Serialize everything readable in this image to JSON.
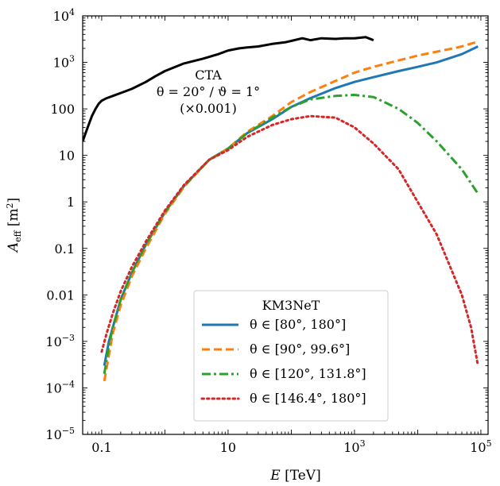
{
  "chart_data": {
    "type": "line",
    "xlabel": "E [TeV]",
    "ylabel": "A_eff [m²]",
    "xscale": "log",
    "yscale": "log",
    "xlim": [
      0.05,
      130000
    ],
    "ylim": [
      1e-05,
      10000
    ],
    "x_ticks": [
      {
        "value": 0.1,
        "base": "0.1",
        "sup": ""
      },
      {
        "value": 10,
        "base": "10",
        "sup": ""
      },
      {
        "value": 1000,
        "base": "10",
        "sup": "3"
      },
      {
        "value": 100000,
        "base": "10",
        "sup": "5"
      }
    ],
    "y_ticks": [
      {
        "value": 10000,
        "base": "10",
        "sup": "4"
      },
      {
        "value": 1000,
        "base": "10",
        "sup": "3"
      },
      {
        "value": 100,
        "base": "100",
        "sup": ""
      },
      {
        "value": 10,
        "base": "10",
        "sup": ""
      },
      {
        "value": 1,
        "base": "1",
        "sup": ""
      },
      {
        "value": 0.1,
        "base": "0.1",
        "sup": ""
      },
      {
        "value": 0.01,
        "base": "0.01",
        "sup": ""
      },
      {
        "value": 0.001,
        "base": "10",
        "sup": "−3"
      },
      {
        "value": 0.0001,
        "base": "10",
        "sup": "−4"
      },
      {
        "value": 1e-05,
        "base": "10",
        "sup": "−5"
      }
    ],
    "annotation": {
      "line1": "CTA",
      "line2": "θ = 20° / ϑ = 1°",
      "line3": "(×0.001)"
    },
    "legend": {
      "title": "KM3NeT",
      "placement": "lower-center"
    },
    "series": [
      {
        "name": "CTA",
        "color": "#000000",
        "dash": "solid",
        "x": [
          0.05,
          0.06,
          0.07,
          0.08,
          0.09,
          0.1,
          0.12,
          0.15,
          0.2,
          0.3,
          0.5,
          0.7,
          1,
          2,
          4,
          7,
          10,
          15,
          20,
          30,
          50,
          80,
          100,
          150,
          200,
          300,
          500,
          700,
          1000,
          1500,
          2000
        ],
        "y": [
          20,
          40,
          70,
          100,
          130,
          150,
          170,
          190,
          220,
          270,
          380,
          500,
          650,
          950,
          1200,
          1500,
          1800,
          2000,
          2100,
          2200,
          2500,
          2700,
          2900,
          3300,
          3000,
          3300,
          3200,
          3300,
          3300,
          3500,
          3000
        ]
      },
      {
        "name": "θ ∈ [80°, 180°]",
        "color": "#1f77b4",
        "dash": "solid",
        "x": [
          0.11,
          0.13,
          0.15,
          0.2,
          0.3,
          0.5,
          1,
          2,
          5,
          10,
          20,
          50,
          100,
          200,
          500,
          1000,
          2000,
          5000,
          10000,
          20000,
          50000,
          90000
        ],
        "y": [
          0.0003,
          0.001,
          0.002,
          0.008,
          0.03,
          0.12,
          0.6,
          2.2,
          8,
          14,
          30,
          60,
          110,
          170,
          280,
          380,
          480,
          650,
          800,
          1000,
          1500,
          2200
        ]
      },
      {
        "name": "θ ∈ [90°, 99.6°]",
        "color": "#ff7f0e",
        "dash": "dashed",
        "x": [
          0.11,
          0.13,
          0.15,
          0.2,
          0.3,
          0.5,
          1,
          2,
          5,
          10,
          20,
          50,
          100,
          200,
          500,
          1000,
          2000,
          5000,
          10000,
          20000,
          50000,
          90000
        ],
        "y": [
          0.00014,
          0.0005,
          0.0015,
          0.006,
          0.025,
          0.1,
          0.55,
          2.1,
          8,
          14,
          32,
          70,
          140,
          230,
          400,
          600,
          800,
          1100,
          1400,
          1700,
          2200,
          2800
        ]
      },
      {
        "name": "θ ∈ [120°, 131.8°]",
        "color": "#2ca02c",
        "dash": "dashdot",
        "x": [
          0.11,
          0.13,
          0.15,
          0.2,
          0.3,
          0.5,
          1,
          2,
          5,
          10,
          20,
          50,
          100,
          200,
          500,
          1000,
          2000,
          5000,
          10000,
          20000,
          50000,
          90000
        ],
        "y": [
          0.0002,
          0.0008,
          0.002,
          0.008,
          0.03,
          0.12,
          0.6,
          2.2,
          8,
          14,
          30,
          65,
          110,
          160,
          190,
          200,
          180,
          100,
          50,
          20,
          5,
          1.5
        ]
      },
      {
        "name": "θ ∈ [146.4°, 180°]",
        "color": "#d62728",
        "dash": "dotted",
        "x": [
          0.1,
          0.12,
          0.15,
          0.2,
          0.3,
          0.5,
          1,
          2,
          5,
          10,
          20,
          50,
          100,
          200,
          500,
          1000,
          2000,
          5000,
          10000,
          20000,
          50000,
          70000,
          90000
        ],
        "y": [
          0.0006,
          0.0015,
          0.004,
          0.012,
          0.04,
          0.14,
          0.65,
          2.3,
          8,
          13,
          25,
          45,
          60,
          70,
          65,
          40,
          18,
          5,
          1,
          0.2,
          0.01,
          0.002,
          0.0003
        ]
      }
    ]
  }
}
